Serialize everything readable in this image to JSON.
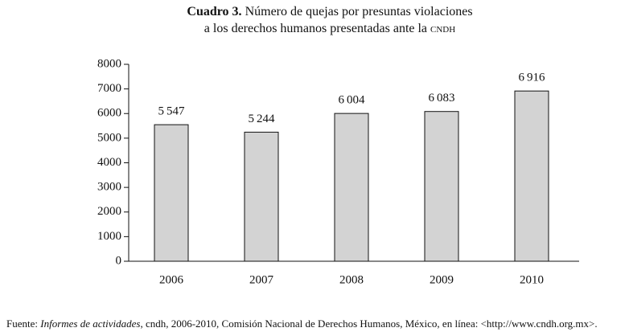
{
  "chart_data": {
    "type": "bar",
    "title_label": "Cuadro 3.",
    "title": "Número de quejas por presuntas violaciones",
    "title_line2": "a los derechos humanos presentadas ante la",
    "title_abbr": "cndh",
    "categories": [
      "2006",
      "2007",
      "2008",
      "2009",
      "2010"
    ],
    "values": [
      5547,
      5244,
      6004,
      6083,
      6916
    ],
    "value_labels": [
      "5 547",
      "5 244",
      "6 004",
      "6 083",
      "6 916"
    ],
    "color": "#d3d3d3",
    "ylim": [
      0,
      8000
    ],
    "yticks": [
      0,
      1000,
      2000,
      3000,
      4000,
      5000,
      6000,
      7000,
      8000
    ],
    "grid": false,
    "source_prefix": "Fuente:",
    "source_title": "Informes de actividades",
    "source_rest": ", cndh, 2006-2010, Comisión Nacional de Derechos Humanos, México, en línea: <http://www.cndh.org.mx>."
  }
}
